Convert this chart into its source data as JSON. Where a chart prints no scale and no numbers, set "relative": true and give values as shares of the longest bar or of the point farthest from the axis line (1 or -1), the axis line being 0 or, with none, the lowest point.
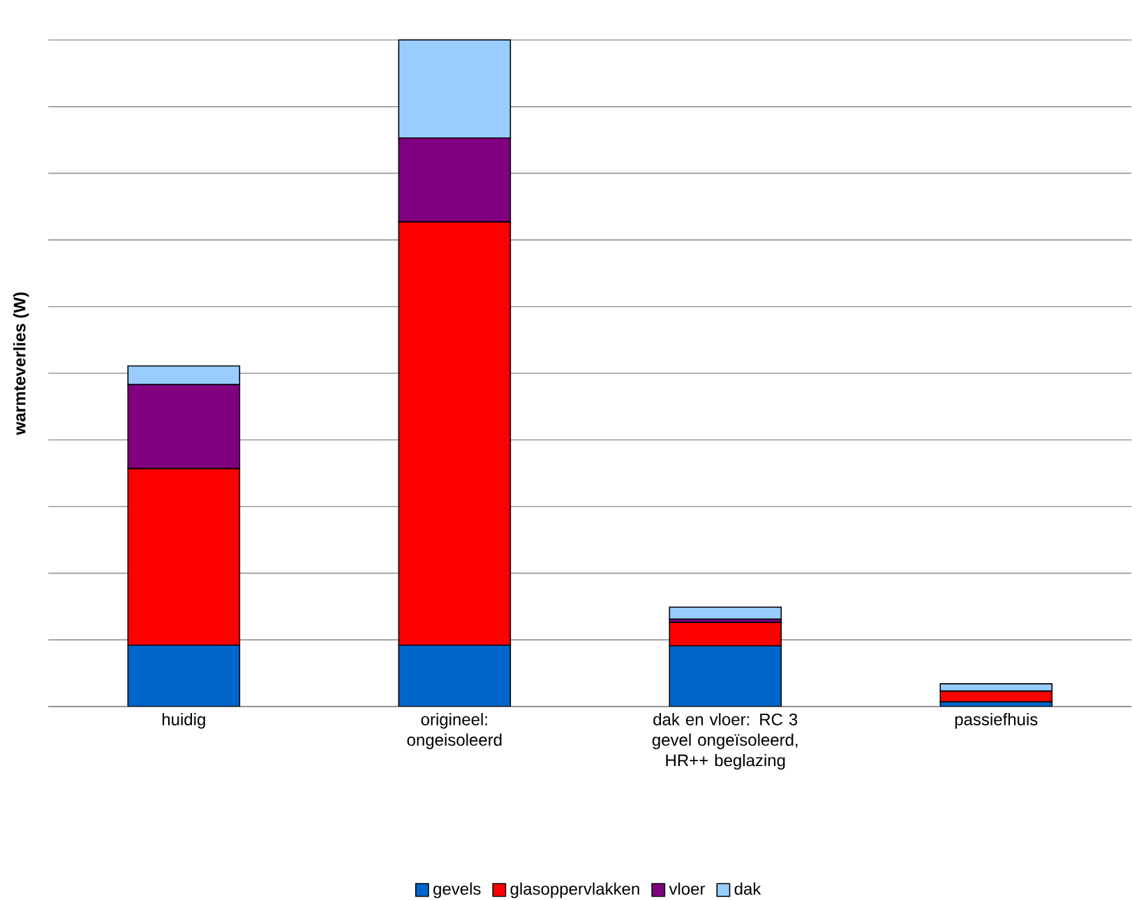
{
  "chart_data": {
    "type": "bar",
    "stacked": true,
    "relative": true,
    "ylabel": "warmteverlies (W)",
    "categories": [
      "huidig",
      "origineel: ongeisoleerd",
      "dak en vloer: RC 3 gevel ongeïsoleerd, HR++ beglazing",
      "passiefhuis"
    ],
    "series": [
      {
        "name": "gevels",
        "color": "#0066cc",
        "values": [
          0.092,
          0.092,
          0.091,
          0.007
        ]
      },
      {
        "name": "glasoppervlakken",
        "color": "#ff0000",
        "values": [
          0.265,
          0.635,
          0.035,
          0.016
        ]
      },
      {
        "name": "vloer",
        "color": "#800080",
        "values": [
          0.126,
          0.126,
          0.005,
          null
        ]
      },
      {
        "name": "dak",
        "color": "#99ccff",
        "values": [
          0.028,
          0.147,
          0.018,
          0.011
        ]
      }
    ],
    "grid": "y",
    "legend": "bottom"
  }
}
